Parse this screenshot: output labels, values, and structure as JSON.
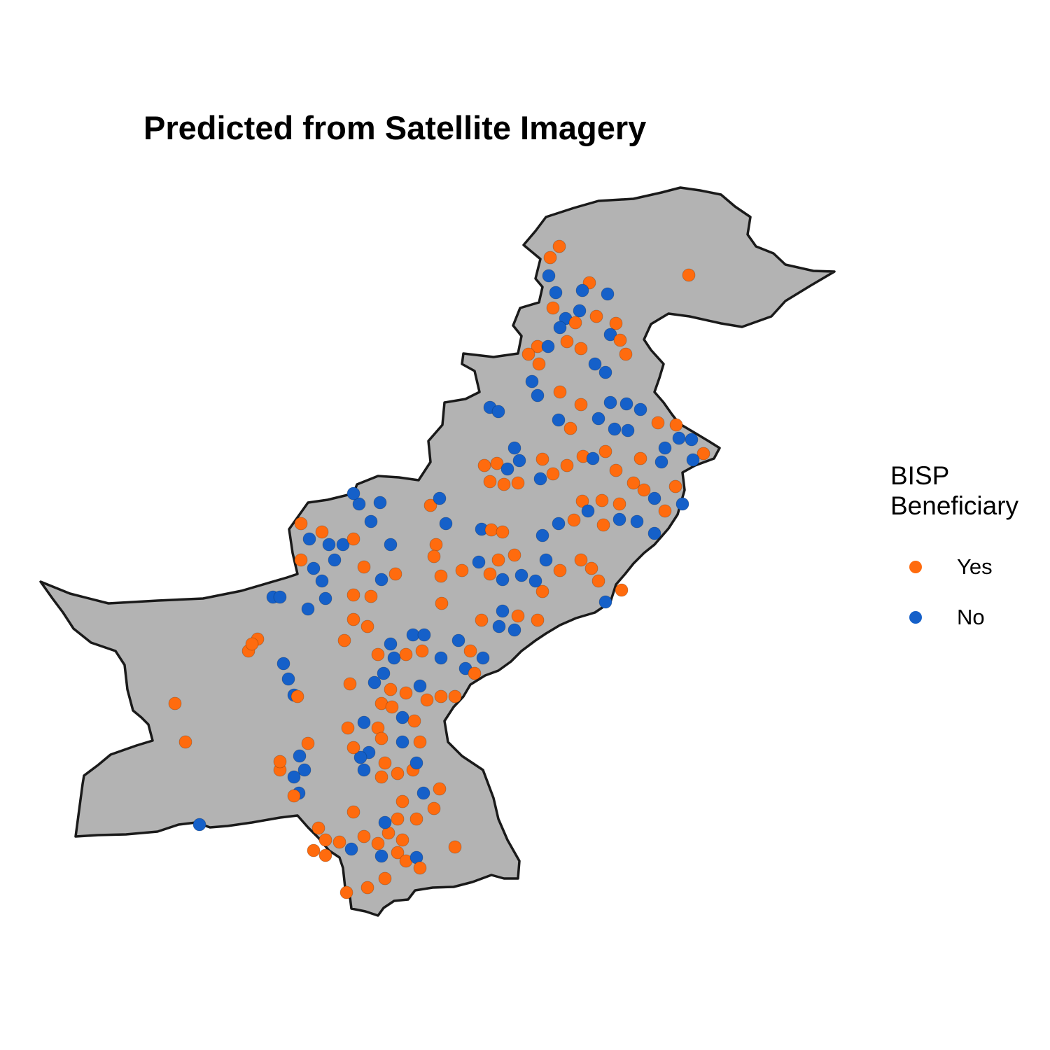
{
  "map": {
    "title": "Predicted from Satellite Imagery",
    "region_fill": "#b3b3b3",
    "border_color": "#1a1a1a",
    "legend": {
      "title_line1": "BISP",
      "title_line2": "Beneficiary",
      "items": [
        {
          "label": "Yes",
          "color": "#ff6b0e"
        },
        {
          "label": "No",
          "color": "#1560c9"
        }
      ]
    }
  }
}
